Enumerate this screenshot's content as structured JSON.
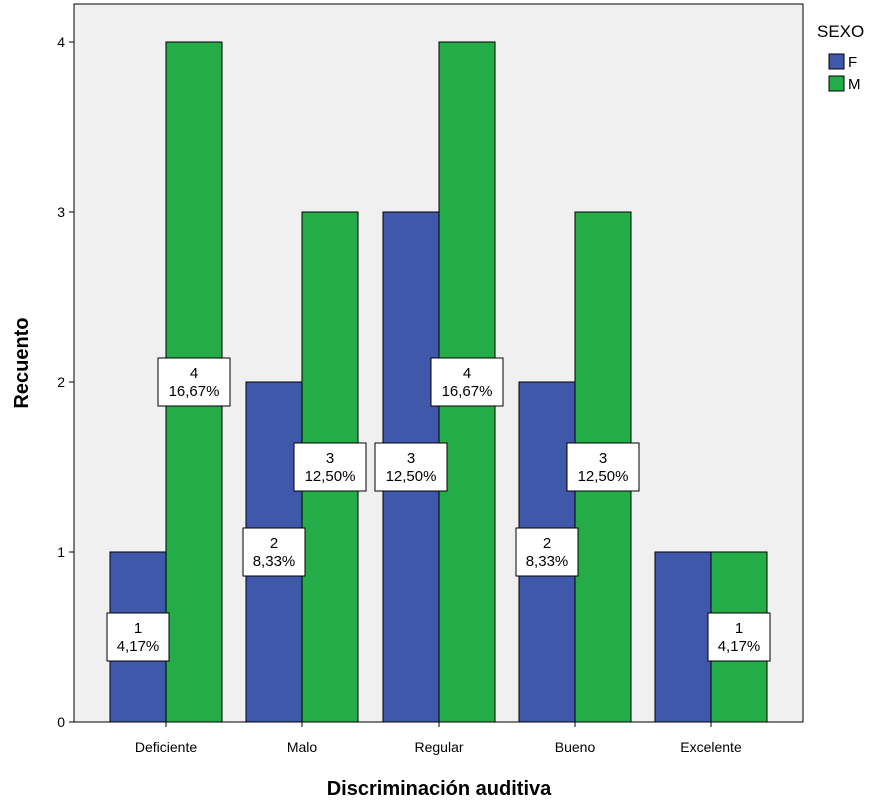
{
  "chart_data": {
    "type": "bar",
    "xlabel": "Discriminación auditiva",
    "ylabel": "Recuento",
    "categories": [
      "Deficiente",
      "Malo",
      "Regular",
      "Bueno",
      "Excelente"
    ],
    "ylim": [
      0,
      4
    ],
    "yticks": [
      "0",
      "1",
      "2",
      "3",
      "4"
    ],
    "legend": {
      "title": "SEXO",
      "position": "top-right"
    },
    "grid": false,
    "series": [
      {
        "name": "F",
        "color": "#3f58aa",
        "values": [
          1,
          2,
          3,
          2,
          1
        ],
        "labels": [
          [
            "1",
            "4,17%"
          ],
          [
            "2",
            "8,33%"
          ],
          [
            "3",
            "12,50%"
          ],
          [
            "2",
            "8,33%"
          ],
          null
        ]
      },
      {
        "name": "M",
        "color": "#23ac47",
        "values": [
          4,
          3,
          4,
          3,
          1
        ],
        "labels": [
          [
            "4",
            "16,67%"
          ],
          [
            "3",
            "12,50%"
          ],
          [
            "4",
            "16,67%"
          ],
          [
            "3",
            "12,50%"
          ],
          [
            "1",
            "4,17%"
          ]
        ]
      }
    ],
    "plot_background": "#f0f0f0"
  }
}
